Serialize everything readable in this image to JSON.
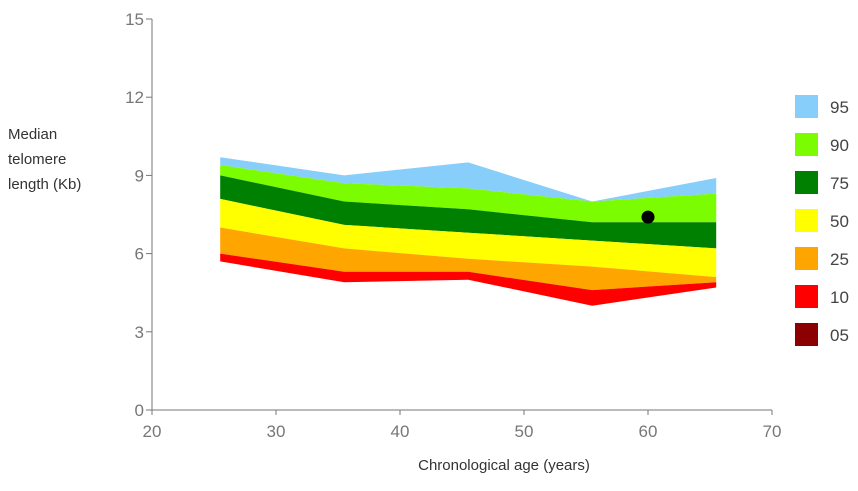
{
  "chart_data": {
    "type": "area",
    "xlabel": "Chronological age (years)",
    "ylabel_lines": [
      "Median",
      "telomere",
      "length (Kb)"
    ],
    "xlim": [
      20,
      70
    ],
    "ylim": [
      0,
      15
    ],
    "xticks": [
      20,
      30,
      40,
      50,
      60,
      70
    ],
    "yticks": [
      0,
      3,
      6,
      9,
      12,
      15
    ],
    "grid": false,
    "legend_position": "right",
    "x": [
      25.5,
      35.5,
      45.5,
      55.5,
      65.5
    ],
    "series": [
      {
        "name": "95",
        "color": "#87CEFA",
        "values": [
          9.7,
          9.0,
          9.5,
          8.0,
          8.9
        ]
      },
      {
        "name": "90",
        "color": "#7CFC00",
        "values": [
          9.4,
          8.7,
          8.5,
          8.0,
          8.3
        ]
      },
      {
        "name": "75",
        "color": "#008000",
        "values": [
          9.0,
          8.0,
          7.7,
          7.2,
          7.2
        ]
      },
      {
        "name": "50",
        "color": "#FFFF00",
        "values": [
          8.1,
          7.1,
          6.8,
          6.5,
          6.2
        ]
      },
      {
        "name": "25",
        "color": "#FFA500",
        "values": [
          7.0,
          6.2,
          5.8,
          5.5,
          5.1
        ]
      },
      {
        "name": "10",
        "color": "#FF0000",
        "values": [
          6.0,
          5.3,
          5.3,
          4.6,
          4.9
        ]
      },
      {
        "name": "05",
        "color": "#8B0000",
        "values": [
          5.7,
          4.9,
          5.0,
          4.0,
          4.7
        ]
      }
    ],
    "marker": {
      "x": 60,
      "y": 7.4,
      "color": "#000000"
    }
  }
}
